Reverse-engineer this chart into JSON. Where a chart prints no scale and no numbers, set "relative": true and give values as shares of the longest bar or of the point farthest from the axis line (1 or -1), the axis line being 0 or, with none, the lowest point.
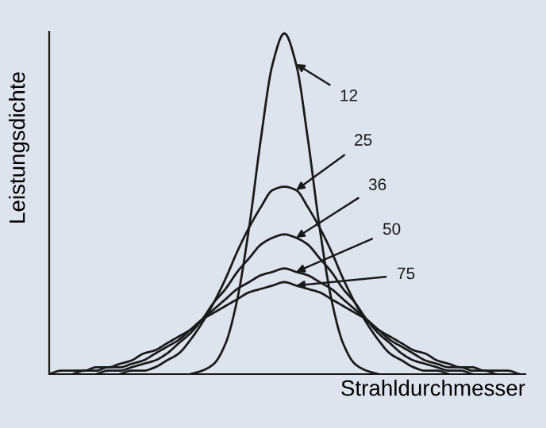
{
  "chart_data": {
    "type": "line",
    "relative": true,
    "xlabel": "Strahldurchmesser",
    "ylabel": "Leistungsdichte",
    "categories": [
      null,
      null,
      null,
      null,
      null,
      null,
      null,
      null,
      null,
      null,
      null,
      null,
      null,
      null,
      null,
      null,
      null,
      null,
      null,
      null,
      null,
      null,
      null,
      null,
      null,
      null,
      null,
      null,
      null,
      null,
      null,
      null,
      null,
      null,
      null,
      null,
      null,
      null,
      null,
      null,
      null
    ],
    "series": [
      {
        "name": "12",
        "color": "#1a1a1a",
        "values": [
          null,
          null,
          null,
          null,
          null,
          null,
          null,
          null,
          null,
          null,
          null,
          null,
          0,
          0.01,
          0.03,
          0.09,
          0.22,
          0.43,
          0.69,
          0.91,
          1,
          0.91,
          0.69,
          0.43,
          0.22,
          0.09,
          0.03,
          0.01,
          0,
          null,
          null,
          null,
          null,
          null,
          null,
          null,
          null,
          null,
          null,
          null,
          null
        ]
      },
      {
        "name": "25",
        "color": "#1a1a1a",
        "values": [
          null,
          null,
          null,
          null,
          null,
          null,
          0,
          0.01,
          0.01,
          0.02,
          0.04,
          0.06,
          0.1,
          0.15,
          0.21,
          0.28,
          0.36,
          0.43,
          0.49,
          0.54,
          0.55,
          0.54,
          0.49,
          0.43,
          0.36,
          0.28,
          0.21,
          0.15,
          0.1,
          0.06,
          0.04,
          0.02,
          0.01,
          0.01,
          0,
          null,
          null,
          null,
          null,
          null,
          null
        ]
      },
      {
        "name": "36",
        "color": "#1a1a1a",
        "values": [
          null,
          null,
          null,
          null,
          0,
          0.01,
          0.01,
          0.02,
          0.03,
          0.04,
          0.06,
          0.09,
          0.12,
          0.16,
          0.21,
          0.25,
          0.3,
          0.34,
          0.38,
          0.4,
          0.41,
          0.4,
          0.38,
          0.34,
          0.3,
          0.25,
          0.21,
          0.16,
          0.12,
          0.09,
          0.06,
          0.04,
          0.03,
          0.02,
          0.01,
          0.01,
          0,
          null,
          null,
          null,
          null
        ]
      },
      {
        "name": "50",
        "color": "#1a1a1a",
        "values": [
          null,
          null,
          0,
          0.01,
          0.01,
          0.02,
          0.02,
          0.03,
          0.04,
          0.06,
          0.08,
          0.1,
          0.13,
          0.16,
          0.19,
          0.22,
          0.25,
          0.27,
          0.29,
          0.3,
          0.31,
          0.3,
          0.29,
          0.27,
          0.25,
          0.22,
          0.19,
          0.16,
          0.13,
          0.1,
          0.08,
          0.06,
          0.04,
          0.03,
          0.02,
          0.02,
          0.01,
          0.01,
          0,
          null,
          null
        ]
      },
      {
        "name": "75",
        "color": "#1a1a1a",
        "values": [
          0,
          0.01,
          0.01,
          0.01,
          0.02,
          0.02,
          0.03,
          0.04,
          0.06,
          0.07,
          0.09,
          0.11,
          0.13,
          0.16,
          0.18,
          0.2,
          0.22,
          0.24,
          0.25,
          0.26,
          0.27,
          0.26,
          0.25,
          0.24,
          0.22,
          0.2,
          0.18,
          0.16,
          0.13,
          0.11,
          0.09,
          0.07,
          0.06,
          0.04,
          0.03,
          0.02,
          0.02,
          0.01,
          0.01,
          0.01,
          0
        ]
      }
    ],
    "marker": "none",
    "line_style": "solid"
  }
}
